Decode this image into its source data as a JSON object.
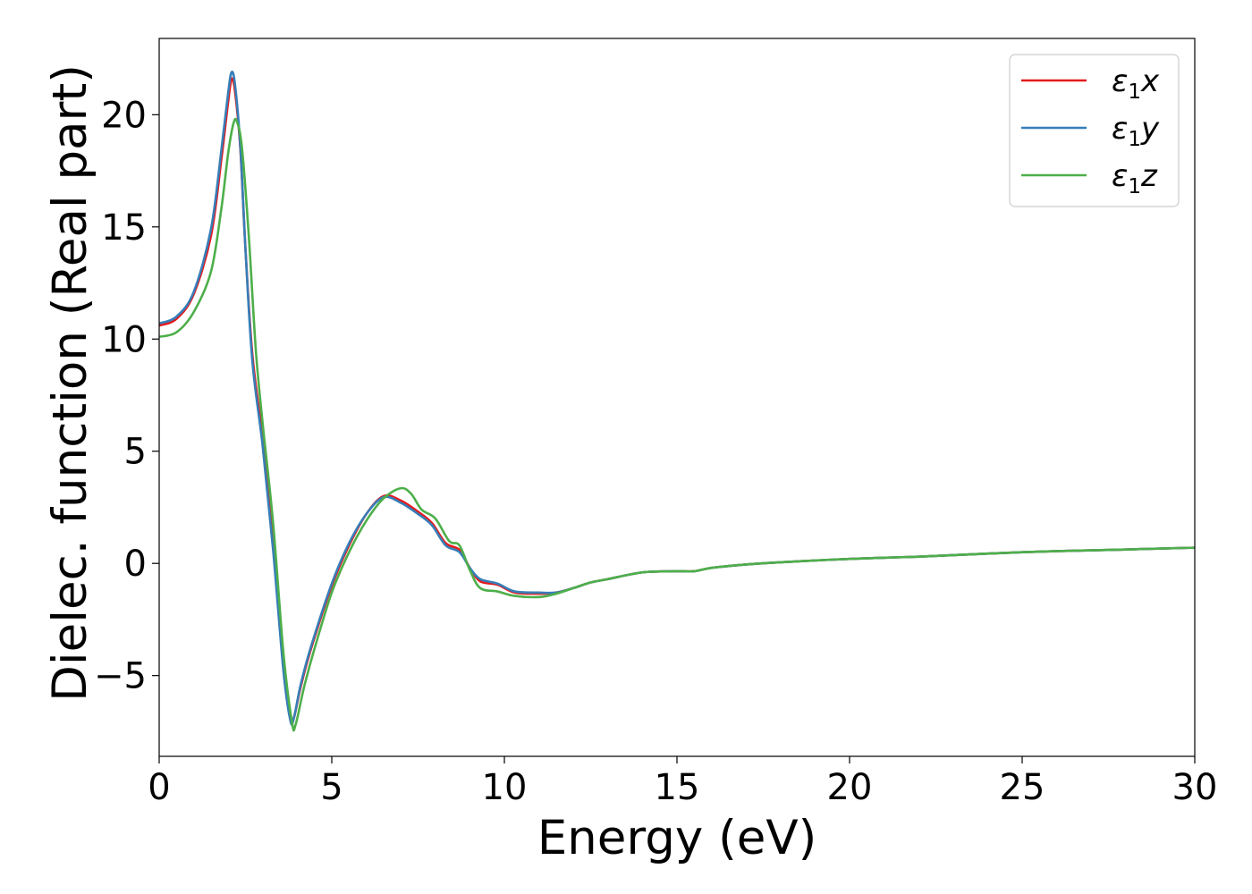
{
  "chart_data": {
    "type": "line",
    "title": "",
    "xlabel": "Energy (eV)",
    "ylabel": "Dielec. function (Real part)",
    "xlim": [
      0,
      30
    ],
    "ylim": [
      -8.6,
      23.4
    ],
    "xticks": [
      0,
      5,
      10,
      15,
      20,
      25,
      30
    ],
    "xtick_labels": [
      "0",
      "5",
      "10",
      "15",
      "20",
      "25",
      "30"
    ],
    "yticks": [
      -5,
      0,
      5,
      10,
      15,
      20
    ],
    "ytick_labels": [
      "−5",
      "0",
      "5",
      "10",
      "15",
      "20"
    ],
    "grid": false,
    "legend_position": "top-right",
    "series": [
      {
        "name": "ε1x",
        "legend": {
          "base": "ε",
          "sub": "1",
          "suffix": "x"
        },
        "color": "#e41a1c",
        "points": [
          [
            0,
            10.6
          ],
          [
            0.5,
            10.9
          ],
          [
            1.0,
            12.0
          ],
          [
            1.5,
            14.6
          ],
          [
            1.8,
            18.0
          ],
          [
            2.0,
            20.6
          ],
          [
            2.1,
            21.6
          ],
          [
            2.2,
            21.0
          ],
          [
            2.35,
            18.5
          ],
          [
            2.5,
            14.0
          ],
          [
            2.7,
            9.3
          ],
          [
            3.0,
            5.5
          ],
          [
            3.3,
            1.0
          ],
          [
            3.6,
            -4.5
          ],
          [
            3.8,
            -6.9
          ],
          [
            3.9,
            -6.9
          ],
          [
            4.1,
            -5.5
          ],
          [
            4.4,
            -3.8
          ],
          [
            5.0,
            -1.0
          ],
          [
            5.5,
            0.8
          ],
          [
            6.0,
            2.2
          ],
          [
            6.5,
            3.0
          ],
          [
            7.0,
            2.8
          ],
          [
            7.5,
            2.3
          ],
          [
            7.9,
            1.8
          ],
          [
            8.3,
            0.9
          ],
          [
            8.7,
            0.6
          ],
          [
            9.0,
            -0.2
          ],
          [
            9.3,
            -0.8
          ],
          [
            9.8,
            -0.95
          ],
          [
            10.3,
            -1.3
          ],
          [
            11.0,
            -1.35
          ],
          [
            11.5,
            -1.3
          ],
          [
            12.0,
            -1.1
          ],
          [
            12.5,
            -0.85
          ],
          [
            13.0,
            -0.7
          ],
          [
            14.0,
            -0.4
          ],
          [
            15.0,
            -0.35
          ],
          [
            15.5,
            -0.35
          ],
          [
            16.0,
            -0.2
          ],
          [
            17.0,
            -0.05
          ],
          [
            18.0,
            0.05
          ],
          [
            20.0,
            0.2
          ],
          [
            22.0,
            0.3
          ],
          [
            25.0,
            0.5
          ],
          [
            28.0,
            0.62
          ],
          [
            30.0,
            0.7
          ]
        ]
      },
      {
        "name": "ε1y",
        "legend": {
          "base": "ε",
          "sub": "1",
          "suffix": "y"
        },
        "color": "#377eb8",
        "points": [
          [
            0,
            10.7
          ],
          [
            0.5,
            11.0
          ],
          [
            1.0,
            12.1
          ],
          [
            1.5,
            14.9
          ],
          [
            1.8,
            18.4
          ],
          [
            2.0,
            21.0
          ],
          [
            2.1,
            21.9
          ],
          [
            2.2,
            21.3
          ],
          [
            2.35,
            18.6
          ],
          [
            2.5,
            14.0
          ],
          [
            2.7,
            9.0
          ],
          [
            3.0,
            5.2
          ],
          [
            3.3,
            0.6
          ],
          [
            3.6,
            -4.8
          ],
          [
            3.8,
            -7.0
          ],
          [
            3.9,
            -6.9
          ],
          [
            4.1,
            -5.4
          ],
          [
            4.4,
            -3.7
          ],
          [
            5.0,
            -0.9
          ],
          [
            5.5,
            0.9
          ],
          [
            6.0,
            2.2
          ],
          [
            6.5,
            2.95
          ],
          [
            7.0,
            2.7
          ],
          [
            7.5,
            2.2
          ],
          [
            7.9,
            1.7
          ],
          [
            8.3,
            0.8
          ],
          [
            8.7,
            0.5
          ],
          [
            9.0,
            -0.2
          ],
          [
            9.3,
            -0.7
          ],
          [
            9.8,
            -0.9
          ],
          [
            10.3,
            -1.25
          ],
          [
            11.0,
            -1.3
          ],
          [
            11.5,
            -1.3
          ],
          [
            12.0,
            -1.1
          ],
          [
            12.5,
            -0.85
          ],
          [
            13.0,
            -0.7
          ],
          [
            14.0,
            -0.4
          ],
          [
            15.0,
            -0.35
          ],
          [
            15.5,
            -0.35
          ],
          [
            16.0,
            -0.2
          ],
          [
            17.0,
            -0.05
          ],
          [
            18.0,
            0.05
          ],
          [
            20.0,
            0.2
          ],
          [
            22.0,
            0.3
          ],
          [
            25.0,
            0.5
          ],
          [
            28.0,
            0.62
          ],
          [
            30.0,
            0.7
          ]
        ]
      },
      {
        "name": "ε1z",
        "legend": {
          "base": "ε",
          "sub": "1",
          "suffix": "z"
        },
        "color": "#4daf4a",
        "points": [
          [
            0,
            10.1
          ],
          [
            0.5,
            10.3
          ],
          [
            1.0,
            11.2
          ],
          [
            1.5,
            13.0
          ],
          [
            1.8,
            15.8
          ],
          [
            2.0,
            18.3
          ],
          [
            2.15,
            19.6
          ],
          [
            2.25,
            19.7
          ],
          [
            2.4,
            18.5
          ],
          [
            2.6,
            14.5
          ],
          [
            2.8,
            9.5
          ],
          [
            3.0,
            6.2
          ],
          [
            3.3,
            1.8
          ],
          [
            3.6,
            -4.0
          ],
          [
            3.85,
            -7.1
          ],
          [
            3.95,
            -7.2
          ],
          [
            4.2,
            -5.5
          ],
          [
            4.5,
            -3.8
          ],
          [
            5.0,
            -1.3
          ],
          [
            5.5,
            0.5
          ],
          [
            6.0,
            1.9
          ],
          [
            6.5,
            2.9
          ],
          [
            7.0,
            3.35
          ],
          [
            7.3,
            3.1
          ],
          [
            7.6,
            2.4
          ],
          [
            8.0,
            2.0
          ],
          [
            8.4,
            1.0
          ],
          [
            8.7,
            0.8
          ],
          [
            9.0,
            -0.3
          ],
          [
            9.3,
            -1.1
          ],
          [
            9.8,
            -1.25
          ],
          [
            10.3,
            -1.45
          ],
          [
            11.0,
            -1.5
          ],
          [
            11.5,
            -1.35
          ],
          [
            12.0,
            -1.1
          ],
          [
            12.5,
            -0.85
          ],
          [
            13.0,
            -0.7
          ],
          [
            14.0,
            -0.4
          ],
          [
            15.0,
            -0.35
          ],
          [
            15.5,
            -0.35
          ],
          [
            16.0,
            -0.2
          ],
          [
            17.0,
            -0.05
          ],
          [
            18.0,
            0.05
          ],
          [
            20.0,
            0.2
          ],
          [
            22.0,
            0.3
          ],
          [
            25.0,
            0.5
          ],
          [
            28.0,
            0.62
          ],
          [
            30.0,
            0.7
          ]
        ]
      }
    ]
  }
}
